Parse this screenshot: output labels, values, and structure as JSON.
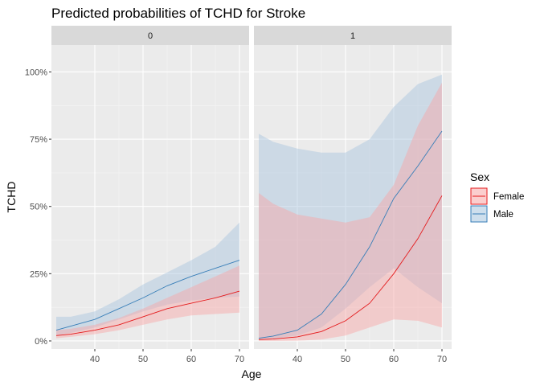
{
  "chart_data": {
    "type": "line",
    "title": "Predicted probabilities of TCHD for Stroke",
    "xlabel": "Age",
    "ylabel": "TCHD",
    "xlim": [
      31,
      72
    ],
    "ylim": [
      -0.03,
      1.1
    ],
    "x_ticks": [
      40,
      50,
      60,
      70
    ],
    "y_ticks": [
      0,
      0.25,
      0.5,
      0.75,
      1.0
    ],
    "y_tick_labels": [
      "0%",
      "25%",
      "50%",
      "75%",
      "100%"
    ],
    "grid": true,
    "legend": {
      "title": "Sex",
      "position": "right",
      "entries": [
        {
          "label": "Female",
          "color": "#e41a1c"
        },
        {
          "label": "Male",
          "color": "#377eb8"
        }
      ]
    },
    "x": [
      32,
      35,
      40,
      45,
      50,
      55,
      60,
      65,
      70
    ],
    "facets": [
      {
        "strip": "0",
        "series": [
          {
            "name": "Female",
            "color": "#e41a1c",
            "fill": "#f8a5a5",
            "values": [
              0.02,
              0.025,
              0.04,
              0.06,
              0.09,
              0.12,
              0.14,
              0.16,
              0.185
            ],
            "lower": [
              0.01,
              0.015,
              0.025,
              0.04,
              0.06,
              0.08,
              0.095,
              0.1,
              0.105
            ],
            "upper": [
              0.04,
              0.045,
              0.06,
              0.085,
              0.12,
              0.16,
              0.2,
              0.24,
              0.28
            ]
          },
          {
            "name": "Male",
            "color": "#377eb8",
            "fill": "#a6c4de",
            "values": [
              0.04,
              0.055,
              0.08,
              0.12,
              0.16,
              0.205,
              0.24,
              0.27,
              0.3
            ],
            "lower": [
              0.02,
              0.03,
              0.05,
              0.08,
              0.11,
              0.135,
              0.15,
              0.16,
              0.165
            ],
            "upper": [
              0.09,
              0.09,
              0.11,
              0.155,
              0.21,
              0.255,
              0.3,
              0.35,
              0.44
            ]
          }
        ]
      },
      {
        "strip": "1",
        "series": [
          {
            "name": "Female",
            "color": "#e41a1c",
            "fill": "#f8a5a5",
            "values": [
              0.005,
              0.007,
              0.015,
              0.035,
              0.075,
              0.14,
              0.25,
              0.38,
              0.54
            ],
            "lower": [
              0.0,
              0.0,
              0.001,
              0.005,
              0.02,
              0.05,
              0.08,
              0.075,
              0.05
            ],
            "upper": [
              0.55,
              0.51,
              0.47,
              0.455,
              0.44,
              0.46,
              0.58,
              0.8,
              0.96
            ]
          },
          {
            "name": "Male",
            "color": "#377eb8",
            "fill": "#a6c4de",
            "values": [
              0.01,
              0.018,
              0.04,
              0.1,
              0.21,
              0.35,
              0.53,
              0.65,
              0.78
            ],
            "lower": [
              0.005,
              0.008,
              0.02,
              0.05,
              0.12,
              0.2,
              0.27,
              0.2,
              0.14
            ],
            "upper": [
              0.77,
              0.74,
              0.715,
              0.7,
              0.7,
              0.75,
              0.87,
              0.955,
              0.99
            ]
          }
        ]
      }
    ]
  }
}
